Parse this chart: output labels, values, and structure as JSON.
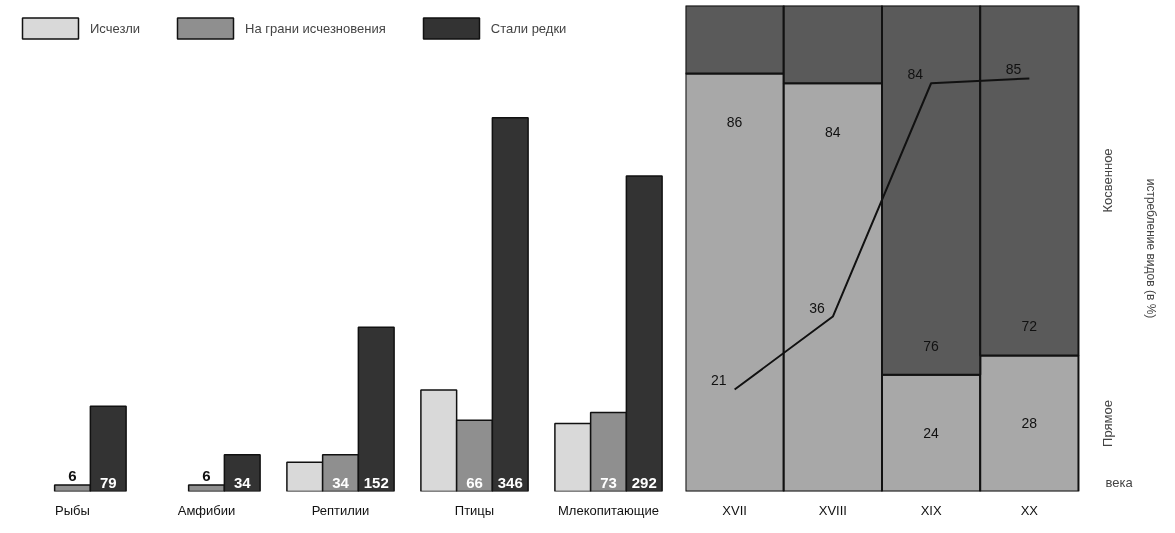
{
  "chart_data": [
    {
      "type": "bar",
      "categories": [
        "Рыбы",
        "Амфибии",
        "Рептилии",
        "Птицы",
        "Млекопитающие"
      ],
      "legend": "top",
      "tick_labels": "x",
      "series": [
        {
          "name": "Исчезли",
          "color": "#d9d9d9",
          "values": [
            null,
            null,
            27,
            94,
            63
          ]
        },
        {
          "name": "На грани исчезновения",
          "color": "#8f8f8f",
          "values": [
            6,
            6,
            34,
            66,
            73
          ],
          "value_labels": [
            "6",
            "6",
            "34",
            "66",
            "73"
          ]
        },
        {
          "name": "Стали редки",
          "color": "#333333",
          "values": [
            79,
            34,
            152,
            346,
            292
          ],
          "value_labels": [
            "79",
            "34",
            "152",
            "346",
            "292"
          ]
        }
      ]
    },
    {
      "type": "bar",
      "stacked": true,
      "categories": [
        "XVII",
        "XVIII",
        "XIX",
        "XX"
      ],
      "xlabel": "века",
      "y2label": "истребление видов (в %)",
      "ylim": [
        0,
        100
      ],
      "tick_labels": "x",
      "series": [
        {
          "name": "Прямое",
          "color": "#a8a8a8",
          "values": [
            86,
            84,
            24,
            28
          ],
          "value_labels": [
            "86",
            "84",
            "24",
            "28"
          ]
        },
        {
          "name": "Косвенное",
          "color": "#5a5a5a",
          "values": [
            14,
            16,
            76,
            72
          ],
          "value_labels": [
            null,
            null,
            "76",
            "72"
          ]
        },
        {
          "type": "line",
          "color": "#111111",
          "values": [
            21,
            36,
            84,
            85
          ],
          "value_labels": [
            "21",
            "36",
            "84",
            "85"
          ]
        }
      ]
    }
  ]
}
